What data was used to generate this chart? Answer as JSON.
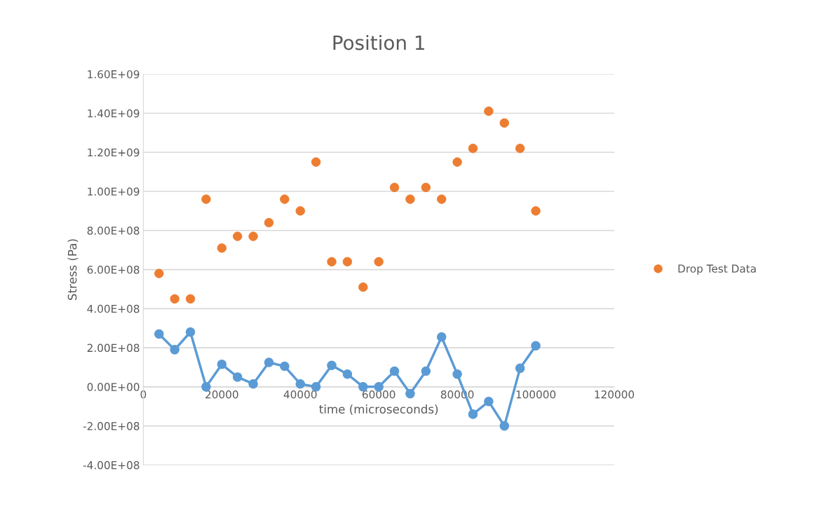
{
  "chart_data": {
    "type": "line",
    "title": "Position 1",
    "xlabel": "time (microseconds)",
    "ylabel": "Stress (Pa)",
    "x": [
      4000,
      8000,
      12000,
      16000,
      20000,
      24000,
      28000,
      32000,
      36000,
      40000,
      44000,
      48000,
      52000,
      56000,
      60000,
      64000,
      68000,
      72000,
      76000,
      80000,
      84000,
      88000,
      92000,
      96000,
      100000
    ],
    "series": [
      {
        "color": "#5b9bd5",
        "marker": "circle",
        "values": [
          270000000.0,
          190000000.0,
          280000000.0,
          0,
          115000000.0,
          50000000.0,
          15000000.0,
          125000000.0,
          105000000.0,
          15000000.0,
          0,
          110000000.0,
          65000000.0,
          0,
          0,
          80000000.0,
          -35000000.0,
          80000000.0,
          255000000.0,
          65000000.0,
          -140000000.0,
          -75000000.0,
          -200000000.0,
          95000000.0,
          210000000.0
        ]
      },
      {
        "type": "scatter",
        "name": "Drop Test Data",
        "color": "#ed7d31",
        "marker": "circle",
        "values": [
          580000000.0,
          450000000.0,
          450000000.0,
          960000000.0,
          710000000.0,
          770000000.0,
          770000000.0,
          840000000.0,
          960000000.0,
          900000000.0,
          1150000000.0,
          640000000.0,
          640000000.0,
          510000000.0,
          640000000.0,
          1020000000.0,
          960000000.0,
          1020000000.0,
          960000000.0,
          1150000000.0,
          1220000000.0,
          1410000000.0,
          1350000000.0,
          1220000000.0,
          900000000.0
        ]
      }
    ],
    "xlim": [
      0,
      120000
    ],
    "xticks": [
      0,
      20000,
      40000,
      60000,
      80000,
      100000,
      120000
    ],
    "ylim": [
      -400000000.0,
      1600000000.0
    ],
    "yticks": [
      {
        "value": -400000000.0,
        "label": "-4.00E+08"
      },
      {
        "value": -200000000.0,
        "label": "-2.00E+08"
      },
      {
        "value": 0,
        "label": "0.00E+00"
      },
      {
        "value": 200000000.0,
        "label": "2.00E+08"
      },
      {
        "value": 400000000.0,
        "label": "4.00E+08"
      },
      {
        "value": 600000000.0,
        "label": "6.00E+08"
      },
      {
        "value": 800000000.0,
        "label": "8.00E+08"
      },
      {
        "value": 1000000000.0,
        "label": "1.00E+09"
      },
      {
        "value": 1200000000.0,
        "label": "1.20E+09"
      },
      {
        "value": 1400000000.0,
        "label": "1.40E+09"
      },
      {
        "value": 1600000000.0,
        "label": "1.60E+09"
      }
    ],
    "grid": "y",
    "legend": "right"
  }
}
